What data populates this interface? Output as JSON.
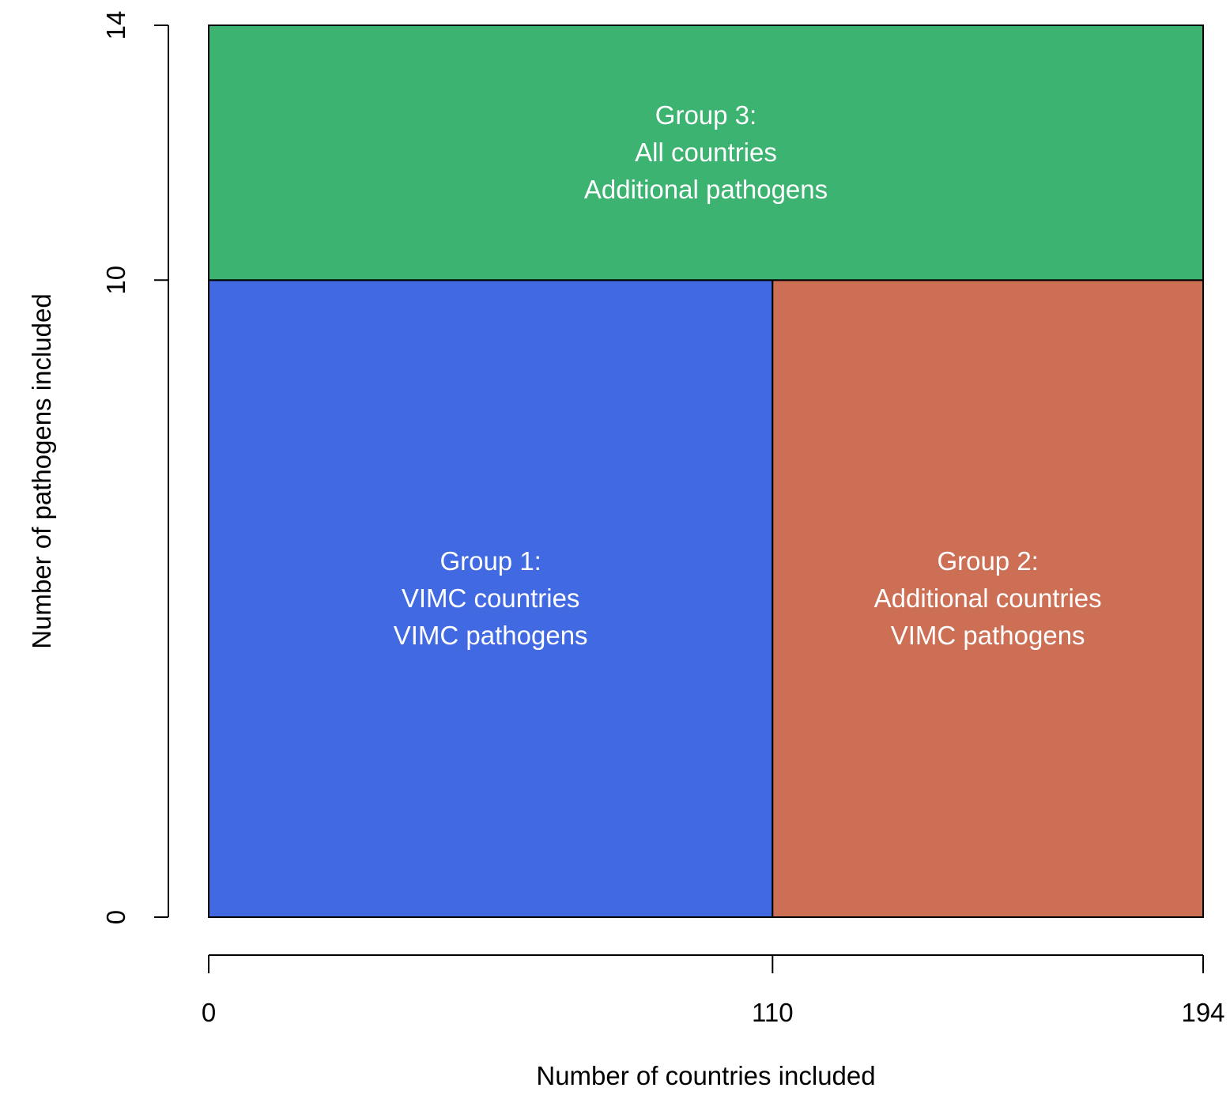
{
  "chart_data": {
    "type": "rect-area",
    "title": "",
    "xlabel": "Number of countries included",
    "ylabel": "Number of pathogens included",
    "xlim": [
      0,
      194
    ],
    "ylim": [
      0,
      14
    ],
    "x_ticks": [
      "0",
      "110",
      "194"
    ],
    "y_ticks": [
      "0",
      "10",
      "14"
    ],
    "grid": false,
    "regions": [
      {
        "x": [
          0,
          110
        ],
        "y": [
          0,
          10
        ],
        "color": "#4169e1",
        "label": [
          "Group 1:",
          "VIMC countries",
          "VIMC pathogens"
        ]
      },
      {
        "x": [
          110,
          194
        ],
        "y": [
          0,
          10
        ],
        "color": "#cd6f55",
        "label": [
          "Group 2:",
          "Additional countries",
          "VIMC pathogens"
        ]
      },
      {
        "x": [
          0,
          194
        ],
        "y": [
          10,
          14
        ],
        "color": "#3cb371",
        "label": [
          "Group 3:",
          "All countries",
          "Additional pathogens"
        ]
      }
    ]
  }
}
